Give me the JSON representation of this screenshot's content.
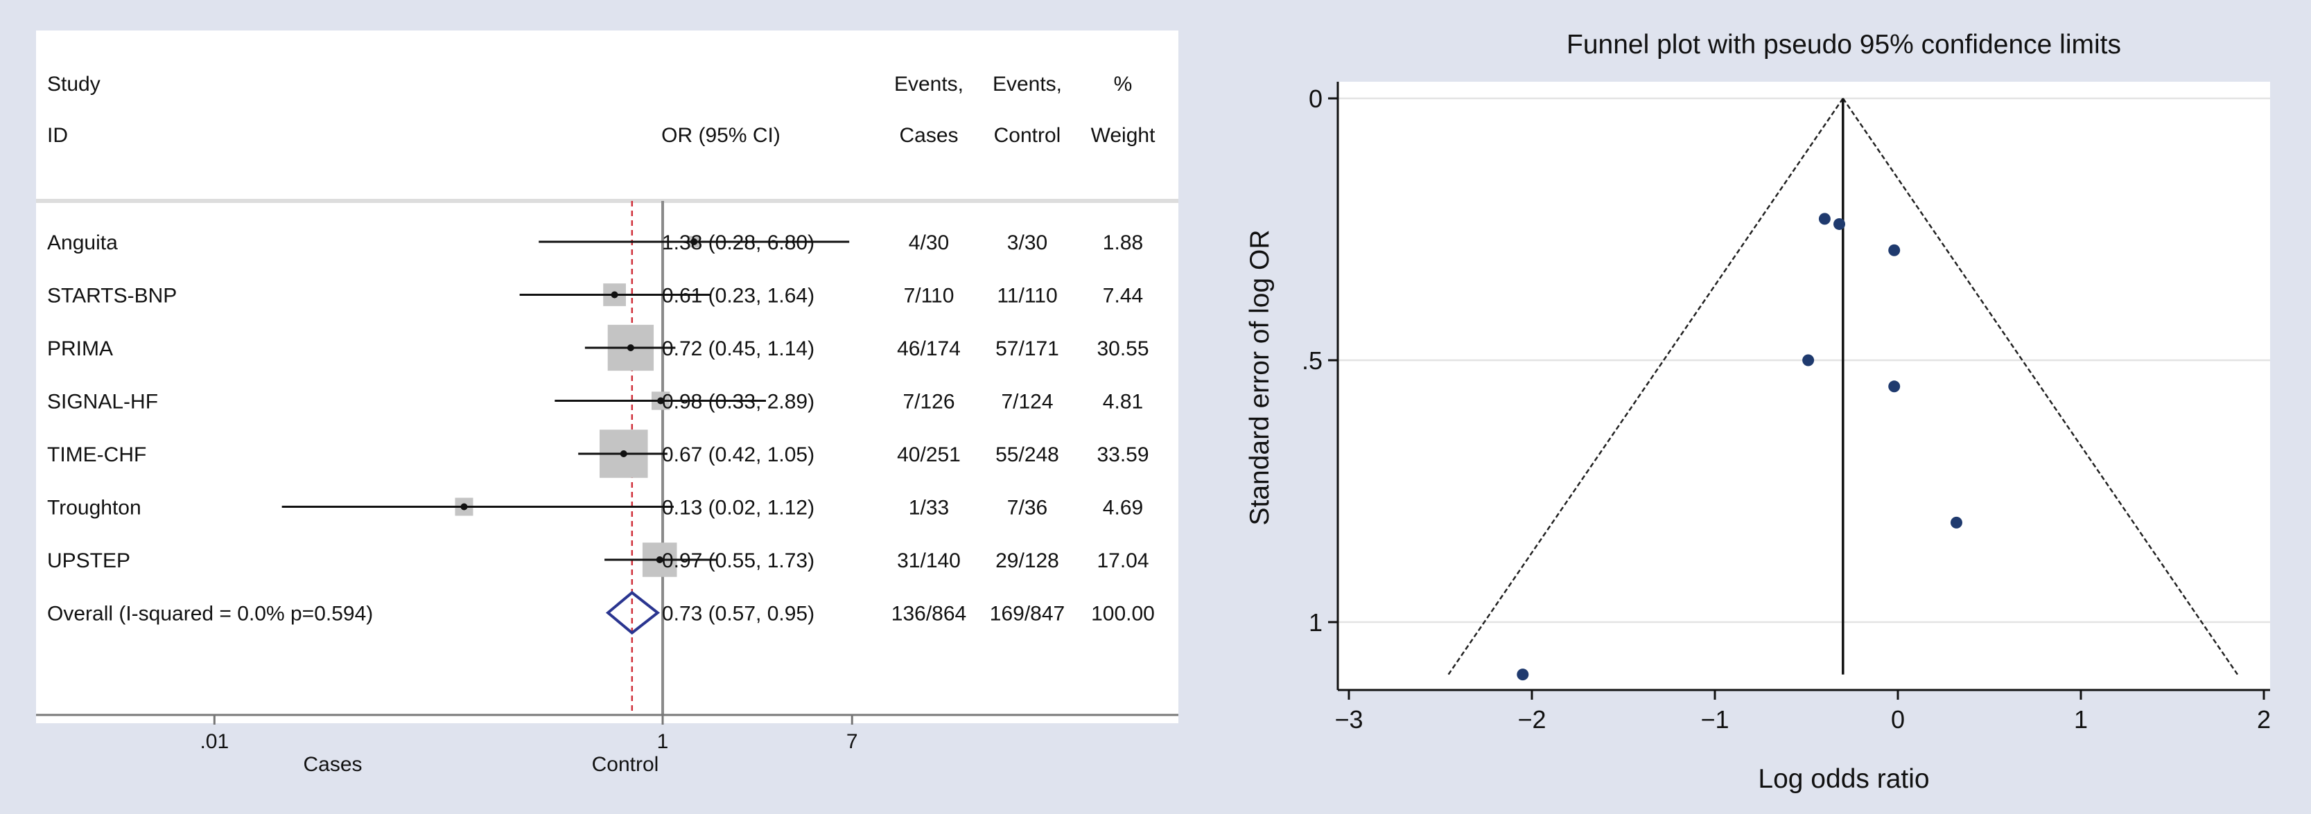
{
  "chart_data": [
    {
      "type": "forest",
      "headers": {
        "study_line1": "Study",
        "study_line2": "ID",
        "or_label": "OR (95% CI)",
        "cases_line1": "Events,",
        "cases_line2": "Cases",
        "control_line1": "Events,",
        "control_line2": "Control",
        "weight_line1": "%",
        "weight_line2": "Weight"
      },
      "studies": [
        {
          "name": "Anguita",
          "or": 1.38,
          "ci": [
            0.28,
            6.8
          ],
          "or_text": "1.38 (0.28, 6.80)",
          "cases": "4/30",
          "control": "3/30",
          "weight": "1.88",
          "weight_value": 1.88
        },
        {
          "name": "STARTS-BNP",
          "or": 0.61,
          "ci": [
            0.23,
            1.64
          ],
          "or_text": "0.61 (0.23, 1.64)",
          "cases": "7/110",
          "control": "11/110",
          "weight": "7.44",
          "weight_value": 7.44
        },
        {
          "name": "PRIMA",
          "or": 0.72,
          "ci": [
            0.45,
            1.14
          ],
          "or_text": "0.72 (0.45, 1.14)",
          "cases": "46/174",
          "control": "57/171",
          "weight": "30.55",
          "weight_value": 30.55
        },
        {
          "name": "SIGNAL-HF",
          "or": 0.98,
          "ci": [
            0.33,
            2.89
          ],
          "or_text": "0.98 (0.33, 2.89)",
          "cases": "7/126",
          "control": "7/124",
          "weight": "4.81",
          "weight_value": 4.81
        },
        {
          "name": "TIME-CHF",
          "or": 0.67,
          "ci": [
            0.42,
            1.05
          ],
          "or_text": "0.67 (0.42, 1.05)",
          "cases": "40/251",
          "control": "55/248",
          "weight": "33.59",
          "weight_value": 33.59
        },
        {
          "name": "Troughton",
          "or": 0.13,
          "ci": [
            0.02,
            1.12
          ],
          "or_text": "0.13 (0.02, 1.12)",
          "cases": "1/33",
          "control": "7/36",
          "weight": "4.69",
          "weight_value": 4.69
        },
        {
          "name": "UPSTEP",
          "or": 0.97,
          "ci": [
            0.55,
            1.73
          ],
          "or_text": "0.97 (0.55, 1.73)",
          "cases": "31/140",
          "control": "29/128",
          "weight": "17.04",
          "weight_value": 17.04
        }
      ],
      "overall": {
        "name": "Overall (I-squared = 0.0% p=0.594)",
        "or": 0.73,
        "ci": [
          0.57,
          0.95
        ],
        "or_text": "0.73 (0.57, 0.95)",
        "cases": "136/864",
        "control": "169/847",
        "weight": "100.00"
      },
      "x_scale": "log",
      "x_ticks": [
        {
          "value": 0.01,
          "label": ".01"
        },
        {
          "value": 1,
          "label": "1"
        },
        {
          "value": 7,
          "label": "7"
        }
      ],
      "xlim": [
        0.0016,
        200
      ],
      "x_side_labels": {
        "left": "Cases",
        "right": "Control"
      }
    },
    {
      "type": "scatter",
      "title": "Funnel plot with pseudo 95% confidence limits",
      "xlabel": "Log odds ratio",
      "ylabel": "Standard error of log OR",
      "xlim": [
        -3,
        2
      ],
      "ylim": [
        0,
        1.12
      ],
      "y_reversed": true,
      "x_ticks": [
        {
          "value": -3,
          "label": "−3"
        },
        {
          "value": -2,
          "label": "−2"
        },
        {
          "value": -1,
          "label": "−1"
        },
        {
          "value": 0,
          "label": "0"
        },
        {
          "value": 1,
          "label": "1"
        },
        {
          "value": 2,
          "label": "2"
        }
      ],
      "y_ticks": [
        {
          "value": 0,
          "label": "0"
        },
        {
          "value": 0.5,
          "label": ".5"
        },
        {
          "value": 1,
          "label": "1"
        }
      ],
      "pooled_log_or": -0.3,
      "limits_max_se": 1.1,
      "points": [
        {
          "x": 0.32,
          "y": 0.81
        },
        {
          "x": -2.05,
          "y": 1.1
        },
        {
          "x": -0.49,
          "y": 0.5
        },
        {
          "x": -0.02,
          "y": 0.55
        },
        {
          "x": -0.02,
          "y": 0.29
        },
        {
          "x": -0.4,
          "y": 0.23
        },
        {
          "x": -0.32,
          "y": 0.24
        }
      ],
      "grid": "horizontal",
      "colors": {
        "points": "#1f3a6e",
        "line": "#000000"
      }
    }
  ]
}
